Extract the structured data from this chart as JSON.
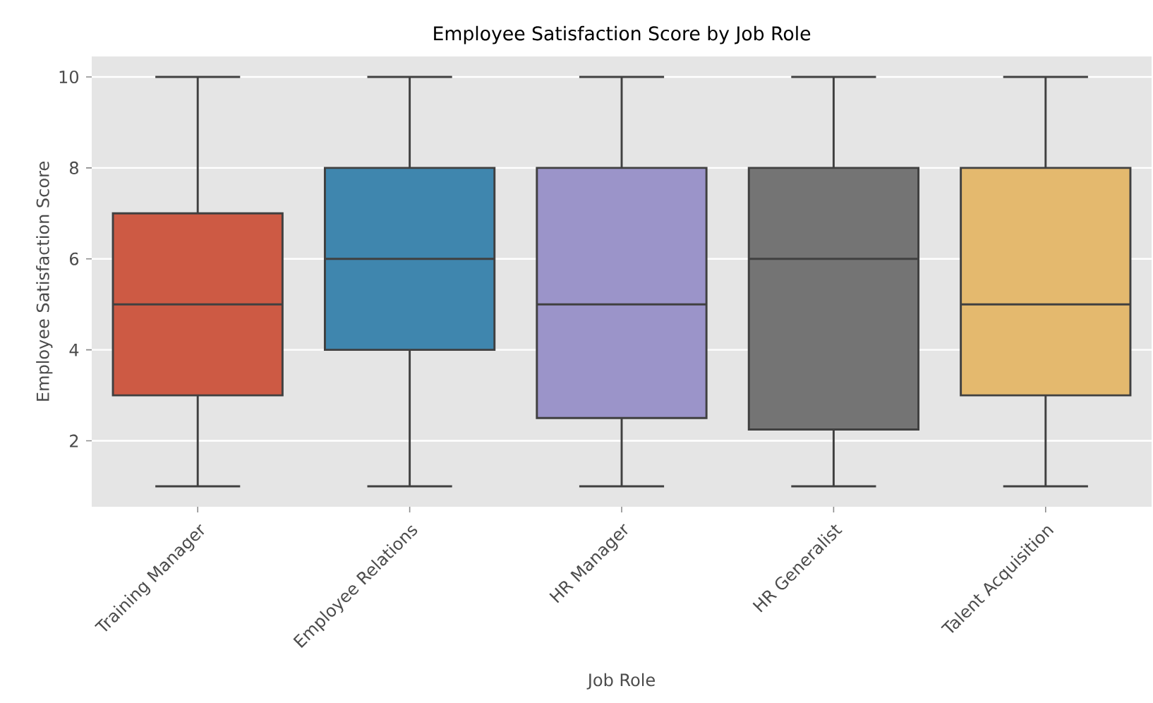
{
  "chart_data": {
    "type": "box",
    "title": "Employee Satisfaction Score by Job Role",
    "xlabel": "Job Role",
    "ylabel": "Employee Satisfaction Score",
    "categories": [
      "Training Manager",
      "Employee Relations",
      "HR Manager",
      "HR Generalist",
      "Talent Acquisition"
    ],
    "boxes": [
      {
        "low": 1,
        "q1": 3,
        "median": 5,
        "q3": 7,
        "high": 10
      },
      {
        "low": 1,
        "q1": 4,
        "median": 6,
        "q3": 8,
        "high": 10
      },
      {
        "low": 1,
        "q1": 2.5,
        "median": 5,
        "q3": 8,
        "high": 10
      },
      {
        "low": 1,
        "q1": 2.25,
        "median": 6,
        "q3": 8,
        "high": 10
      },
      {
        "low": 1,
        "q1": 3,
        "median": 5,
        "q3": 8,
        "high": 10
      }
    ],
    "colors": [
      "#cd5a44",
      "#3f86ae",
      "#9b94c9",
      "#747474",
      "#e4b96e"
    ],
    "ylim": [
      0.55,
      10.45
    ],
    "yticks": [
      2,
      4,
      6,
      8,
      10
    ],
    "grid": "y"
  }
}
